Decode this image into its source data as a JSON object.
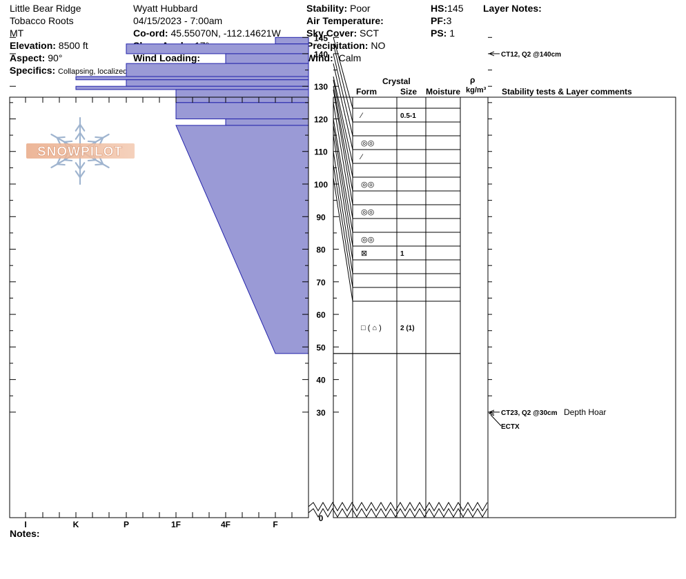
{
  "header": {
    "location": "Little Bear Ridge",
    "range": "Tobacco Roots",
    "state": "MT",
    "elevation_label": "Elevation:",
    "elevation": "8500 ft",
    "aspect_label": "Aspect:",
    "aspect": "90°",
    "specifics_label": "Specifics:",
    "specifics": "Collapsing, localized;  Cracking",
    "observer": "Wyatt Hubbard",
    "datetime": "04/15/2023 - 7:00am",
    "coord_label": "Co-ord:",
    "coord": "45.55070N, -112.14621W",
    "slope_label": "Slope Angle:",
    "slope": "17°",
    "wind_loading_label": "Wind Loading:",
    "wind_loading": "",
    "stability_label": "Stability:",
    "stability": "Poor",
    "air_temp_label": "Air Temperature:",
    "air_temp": "",
    "sky_label": "Sky Cover:",
    "sky": "SCT",
    "precip_label": "Precipitation:",
    "precip": "NO",
    "wind_label": "Wind:",
    "wind": "Calm",
    "hs_label": "HS:",
    "hs": "145",
    "pf_label": "PF:",
    "pf": "3",
    "ps_label": "PS:",
    "ps": "1",
    "layer_notes_label": "Layer Notes:"
  },
  "columns": {
    "crystal": "Crystal",
    "form": "Form",
    "size": "Size",
    "moisture": "Moisture",
    "rho": "ρ",
    "density_unit": "kg/m³",
    "comments": "Stability tests & Layer comments"
  },
  "logo_text": "SNOWPILOT",
  "notes_label": "Notes:",
  "chart_data": {
    "type": "snow-profile",
    "hardness_ticks": [
      "I",
      "K",
      "P",
      "1F",
      "4F",
      "F"
    ],
    "hardness_scale_order": [
      "F",
      "4F",
      "1F",
      "P",
      "K",
      "I"
    ],
    "height_ticks": [
      0,
      30,
      40,
      50,
      60,
      70,
      80,
      90,
      100,
      110,
      120,
      130,
      140,
      145
    ],
    "height_axis_break": true,
    "hardness_profile": [
      {
        "top": 145,
        "bottom": 143,
        "hardness": "F"
      },
      {
        "top": 143,
        "bottom": 140,
        "hardness": "P"
      },
      {
        "top": 140,
        "bottom": 137,
        "hardness": "4F"
      },
      {
        "top": 137,
        "bottom": 133,
        "hardness": "P"
      },
      {
        "top": 133,
        "bottom": 132,
        "hardness": "P+"
      },
      {
        "top": 132,
        "bottom": 130,
        "hardness": "P"
      },
      {
        "top": 130,
        "bottom": 129,
        "hardness": "K"
      },
      {
        "top": 129,
        "bottom": 125,
        "hardness": "1F"
      },
      {
        "top": 125,
        "bottom": 120,
        "hardness": "1F"
      },
      {
        "top": 120,
        "bottom": 118,
        "hardness": "4F"
      },
      {
        "top": 118,
        "bottom": 48,
        "hardness_top": "1F",
        "hardness_bottom": "F"
      }
    ],
    "layers": [
      {
        "top": 145,
        "bottom": 143,
        "form": "PP",
        "size": "0.5-1"
      },
      {
        "top": 143,
        "bottom": 140,
        "form": "",
        "size": ""
      },
      {
        "top": 140,
        "bottom": 137,
        "form": "MF",
        "size": ""
      },
      {
        "top": 137,
        "bottom": 133,
        "form": "PP",
        "size": ""
      },
      {
        "top": 133,
        "bottom": 132,
        "form": "",
        "size": ""
      },
      {
        "top": 132,
        "bottom": 130,
        "form": "MF",
        "size": ""
      },
      {
        "top": 130,
        "bottom": 129,
        "form": "",
        "size": ""
      },
      {
        "top": 129,
        "bottom": 125,
        "form": "MF",
        "size": ""
      },
      {
        "top": 125,
        "bottom": 120,
        "form": "",
        "size": ""
      },
      {
        "top": 120,
        "bottom": 118,
        "form": "MF",
        "size": ""
      },
      {
        "top": 118,
        "bottom": 115,
        "form": "FCxr",
        "size": "1"
      },
      {
        "top": 115,
        "bottom": 110,
        "form": "",
        "size": ""
      },
      {
        "top": 110,
        "bottom": 106,
        "form": "",
        "size": ""
      },
      {
        "top": 106,
        "bottom": 102,
        "form": "",
        "size": ""
      },
      {
        "top": 102,
        "bottom": 48,
        "form": "FC (DHcp)",
        "size": "2 (1)"
      },
      {
        "top": 48,
        "bottom": 0,
        "form": "",
        "size": ""
      }
    ],
    "form_glyphs": {
      "PP": "⁄",
      "MF": "◎◎",
      "FCxr": "⊠",
      "FC (DHcp)": "□ ( ⌂ )"
    },
    "tests": [
      {
        "height": 140,
        "text": "CT12, Q2 @140cm",
        "comment": ""
      },
      {
        "height": 30,
        "text": "CT23, Q2 @30cm",
        "comment": "Depth Hoar"
      },
      {
        "height": 30,
        "text": "ECTX",
        "comment": ""
      }
    ]
  }
}
